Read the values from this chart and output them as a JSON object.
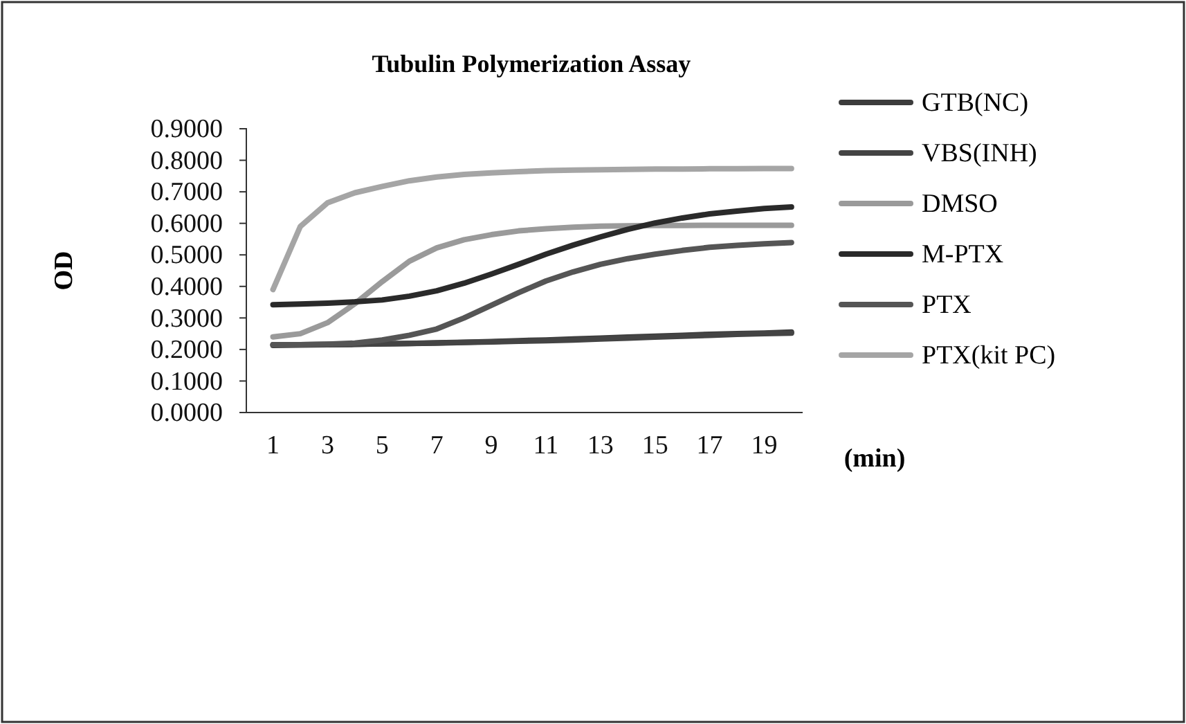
{
  "chart_data": {
    "type": "line",
    "title": "Tubulin Polymerization Assay",
    "xlabel": "(min)",
    "ylabel": "OD",
    "x": [
      1,
      2,
      3,
      4,
      5,
      6,
      7,
      8,
      9,
      10,
      11,
      12,
      13,
      14,
      15,
      16,
      17,
      18,
      19,
      20
    ],
    "xlim": [
      -0.23,
      20.41
    ],
    "xticks": [
      1,
      3,
      5,
      7,
      9,
      11,
      13,
      15,
      17,
      19
    ],
    "ylim": [
      0,
      0.9
    ],
    "yticks": [
      {
        "value": 0,
        "label": "0.0000"
      },
      {
        "value": 0.1,
        "label": "0.1000"
      },
      {
        "value": 0.2,
        "label": "0.2000"
      },
      {
        "value": 0.3,
        "label": "0.3000"
      },
      {
        "value": 0.4,
        "label": "0.4000"
      },
      {
        "value": 0.5,
        "label": "0.5000"
      },
      {
        "value": 0.6,
        "label": "0.6000"
      },
      {
        "value": 0.7,
        "label": "0.7000"
      },
      {
        "value": 0.8,
        "label": "0.8000"
      },
      {
        "value": 0.9,
        "label": "0.9000"
      }
    ],
    "grid": false,
    "legend": "right",
    "marker": "none",
    "line_style": "solid",
    "series": [
      {
        "name": "GTB(NC)",
        "color": "#3c3c3c",
        "values": [
          0.213,
          0.214,
          0.215,
          0.216,
          0.218,
          0.219,
          0.221,
          0.223,
          0.225,
          0.228,
          0.23,
          0.233,
          0.236,
          0.239,
          0.242,
          0.245,
          0.248,
          0.25,
          0.252,
          0.255
        ]
      },
      {
        "name": "VBS(INH)",
        "color": "#444444",
        "values": [
          0.215,
          0.215,
          0.216,
          0.217,
          0.218,
          0.219,
          0.22,
          0.222,
          0.224,
          0.226,
          0.228,
          0.23,
          0.233,
          0.236,
          0.239,
          0.242,
          0.245,
          0.248,
          0.25,
          0.252
        ]
      },
      {
        "name": "DMSO",
        "color": "#9a9a9a",
        "values": [
          0.24,
          0.25,
          0.285,
          0.345,
          0.415,
          0.48,
          0.522,
          0.548,
          0.564,
          0.576,
          0.583,
          0.588,
          0.591,
          0.592,
          0.593,
          0.593,
          0.594,
          0.594,
          0.594,
          0.594
        ]
      },
      {
        "name": "M-PTX",
        "color": "#2a2a2a",
        "values": [
          0.342,
          0.344,
          0.347,
          0.351,
          0.357,
          0.369,
          0.386,
          0.41,
          0.439,
          0.47,
          0.502,
          0.531,
          0.557,
          0.581,
          0.601,
          0.617,
          0.63,
          0.639,
          0.647,
          0.652
        ]
      },
      {
        "name": "PTX",
        "color": "#555555",
        "values": [
          0.215,
          0.215,
          0.217,
          0.22,
          0.23,
          0.245,
          0.265,
          0.3,
          0.34,
          0.38,
          0.417,
          0.446,
          0.47,
          0.488,
          0.502,
          0.514,
          0.524,
          0.53,
          0.535,
          0.539
        ]
      },
      {
        "name": "PTX(kit PC)",
        "color": "#a5a5a5",
        "values": [
          0.39,
          0.59,
          0.665,
          0.697,
          0.717,
          0.735,
          0.747,
          0.755,
          0.76,
          0.764,
          0.767,
          0.769,
          0.77,
          0.771,
          0.772,
          0.772,
          0.773,
          0.773,
          0.774,
          0.774
        ]
      }
    ]
  }
}
